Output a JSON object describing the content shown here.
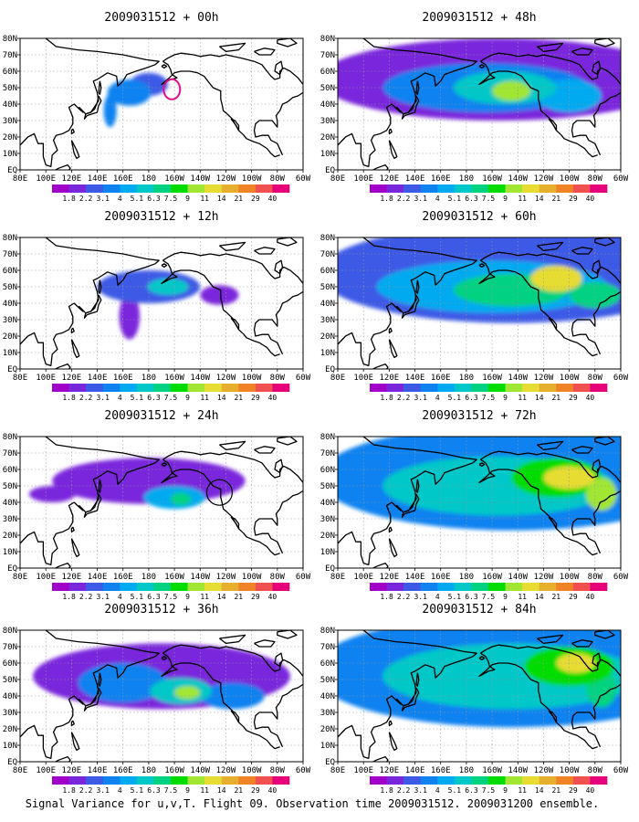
{
  "figure": {
    "caption": "Signal Variance for u,v,T. Flight 09. Observation time 2009031512. 2009031200 ensemble.",
    "x_tick_labels": [
      "80E",
      "100E",
      "120E",
      "140E",
      "160E",
      "180",
      "160W",
      "140W",
      "120W",
      "100W",
      "80W",
      "60W"
    ],
    "y_tick_labels": [
      "EQ",
      "10N",
      "20N",
      "30N",
      "40N",
      "50N",
      "60N",
      "70N",
      "80N"
    ],
    "contour_levels": [
      "1.8",
      "2.2",
      "3.1",
      "4",
      "5.1",
      "6.3",
      "7.5",
      "9",
      "11",
      "14",
      "21",
      "29",
      "40"
    ],
    "colors": [
      "#a000c8",
      "#7a26dc",
      "#3c5ae6",
      "#0f82f0",
      "#00aaf0",
      "#00c8c8",
      "#00d282",
      "#00dc00",
      "#a0e632",
      "#e6dc32",
      "#e6af2d",
      "#f08228",
      "#f05050",
      "#e6007a"
    ]
  },
  "chart_data": [
    {
      "type": "heatmap",
      "title": "2009031512 + 00h",
      "lead_hours": 0,
      "xlim": [
        "80E",
        "60W"
      ],
      "ylim": [
        "EQ",
        "80N"
      ],
      "blobs": [
        {
          "lon": 165,
          "lat": 47,
          "rlon": 17,
          "rlat": 8,
          "level": 3
        },
        {
          "lon": 150,
          "lat": 36,
          "rlon": 5,
          "rlat": 10,
          "level": 3
        },
        {
          "lon": 180,
          "lat": 52,
          "rlon": 15,
          "rlat": 7,
          "level": 2
        }
      ]
    },
    {
      "type": "heatmap",
      "title": "2009031512 + 12h",
      "lead_hours": 12,
      "xlim": [
        "80E",
        "60W"
      ],
      "ylim": [
        "EQ",
        "80N"
      ],
      "blobs": [
        {
          "lon": 180,
          "lat": 50,
          "rlon": 40,
          "rlat": 10,
          "level": 2
        },
        {
          "lon": 165,
          "lat": 32,
          "rlon": 8,
          "rlat": 14,
          "level": 1
        },
        {
          "lon": 195,
          "lat": 50,
          "rlon": 16,
          "rlat": 5,
          "level": 5
        },
        {
          "lon": 235,
          "lat": 45,
          "rlon": 15,
          "rlat": 6,
          "level": 1
        }
      ]
    },
    {
      "type": "heatmap",
      "title": "2009031512 + 24h",
      "lead_hours": 24,
      "xlim": [
        "80E",
        "60W"
      ],
      "ylim": [
        "EQ",
        "80N"
      ],
      "blobs": [
        {
          "lon": 180,
          "lat": 53,
          "rlon": 75,
          "rlat": 14,
          "level": 1
        },
        {
          "lon": 200,
          "lat": 43,
          "rlon": 24,
          "rlat": 7,
          "level": 4
        },
        {
          "lon": 205,
          "lat": 42,
          "rlon": 8,
          "rlat": 4,
          "level": 6
        },
        {
          "lon": 105,
          "lat": 45,
          "rlon": 18,
          "rlat": 5,
          "level": 1
        }
      ]
    },
    {
      "type": "heatmap",
      "title": "2009031512 + 36h",
      "lead_hours": 36,
      "xlim": [
        "80E",
        "60W"
      ],
      "ylim": [
        "EQ",
        "80N"
      ],
      "blobs": [
        {
          "lon": 190,
          "lat": 52,
          "rlon": 100,
          "rlat": 20,
          "level": 1
        },
        {
          "lon": 160,
          "lat": 48,
          "rlon": 35,
          "rlat": 12,
          "level": 3
        },
        {
          "lon": 205,
          "lat": 43,
          "rlon": 24,
          "rlat": 8,
          "level": 5
        },
        {
          "lon": 210,
          "lat": 42,
          "rlon": 10,
          "rlat": 4,
          "level": 8
        },
        {
          "lon": 245,
          "lat": 40,
          "rlon": 25,
          "rlat": 8,
          "level": 3
        }
      ]
    },
    {
      "type": "heatmap",
      "title": "2009031512 + 48h",
      "lead_hours": 48,
      "xlim": [
        "80E",
        "60W"
      ],
      "ylim": [
        "EQ",
        "80N"
      ],
      "blobs": [
        {
          "lon": 205,
          "lat": 55,
          "rlon": 140,
          "rlat": 25,
          "level": 1
        },
        {
          "lon": 195,
          "lat": 50,
          "rlon": 80,
          "rlat": 15,
          "level": 3
        },
        {
          "lon": 210,
          "lat": 50,
          "rlon": 40,
          "rlat": 10,
          "level": 5
        },
        {
          "lon": 215,
          "lat": 48,
          "rlon": 15,
          "rlat": 6,
          "level": 8
        },
        {
          "lon": 260,
          "lat": 45,
          "rlon": 25,
          "rlat": 10,
          "level": 4
        }
      ]
    },
    {
      "type": "heatmap",
      "title": "2009031512 + 60h",
      "lead_hours": 60,
      "xlim": [
        "80E",
        "60W"
      ],
      "ylim": [
        "EQ",
        "80N"
      ],
      "blobs": [
        {
          "lon": 215,
          "lat": 58,
          "rlon": 150,
          "rlat": 30,
          "level": 2
        },
        {
          "lon": 200,
          "lat": 50,
          "rlon": 90,
          "rlat": 16,
          "level": 4
        },
        {
          "lon": 215,
          "lat": 48,
          "rlon": 45,
          "rlat": 10,
          "level": 6
        },
        {
          "lon": 250,
          "lat": 55,
          "rlon": 20,
          "rlat": 8,
          "level": 9
        },
        {
          "lon": 280,
          "lat": 45,
          "rlon": 20,
          "rlat": 8,
          "level": 6
        }
      ]
    },
    {
      "type": "heatmap",
      "title": "2009031512 + 72h",
      "lead_hours": 72,
      "xlim": [
        "80E",
        "60W"
      ],
      "ylim": [
        "EQ",
        "80N"
      ],
      "blobs": [
        {
          "lon": 215,
          "lat": 55,
          "rlon": 150,
          "rlat": 32,
          "level": 3
        },
        {
          "lon": 205,
          "lat": 50,
          "rlon": 90,
          "rlat": 18,
          "level": 5
        },
        {
          "lon": 250,
          "lat": 55,
          "rlon": 35,
          "rlat": 12,
          "level": 7
        },
        {
          "lon": 260,
          "lat": 55,
          "rlon": 20,
          "rlat": 7,
          "level": 9
        },
        {
          "lon": 285,
          "lat": 45,
          "rlon": 12,
          "rlat": 10,
          "level": 8
        }
      ]
    },
    {
      "type": "heatmap",
      "title": "2009031512 + 84h",
      "lead_hours": 84,
      "xlim": [
        "80E",
        "60W"
      ],
      "ylim": [
        "EQ",
        "80N"
      ],
      "blobs": [
        {
          "lon": 215,
          "lat": 55,
          "rlon": 155,
          "rlat": 34,
          "level": 3
        },
        {
          "lon": 215,
          "lat": 52,
          "rlon": 100,
          "rlat": 20,
          "level": 5
        },
        {
          "lon": 260,
          "lat": 58,
          "rlon": 35,
          "rlat": 12,
          "level": 7
        },
        {
          "lon": 265,
          "lat": 60,
          "rlon": 15,
          "rlat": 6,
          "level": 9
        },
        {
          "lon": 285,
          "lat": 45,
          "rlon": 12,
          "rlat": 12,
          "level": 6
        }
      ]
    }
  ]
}
